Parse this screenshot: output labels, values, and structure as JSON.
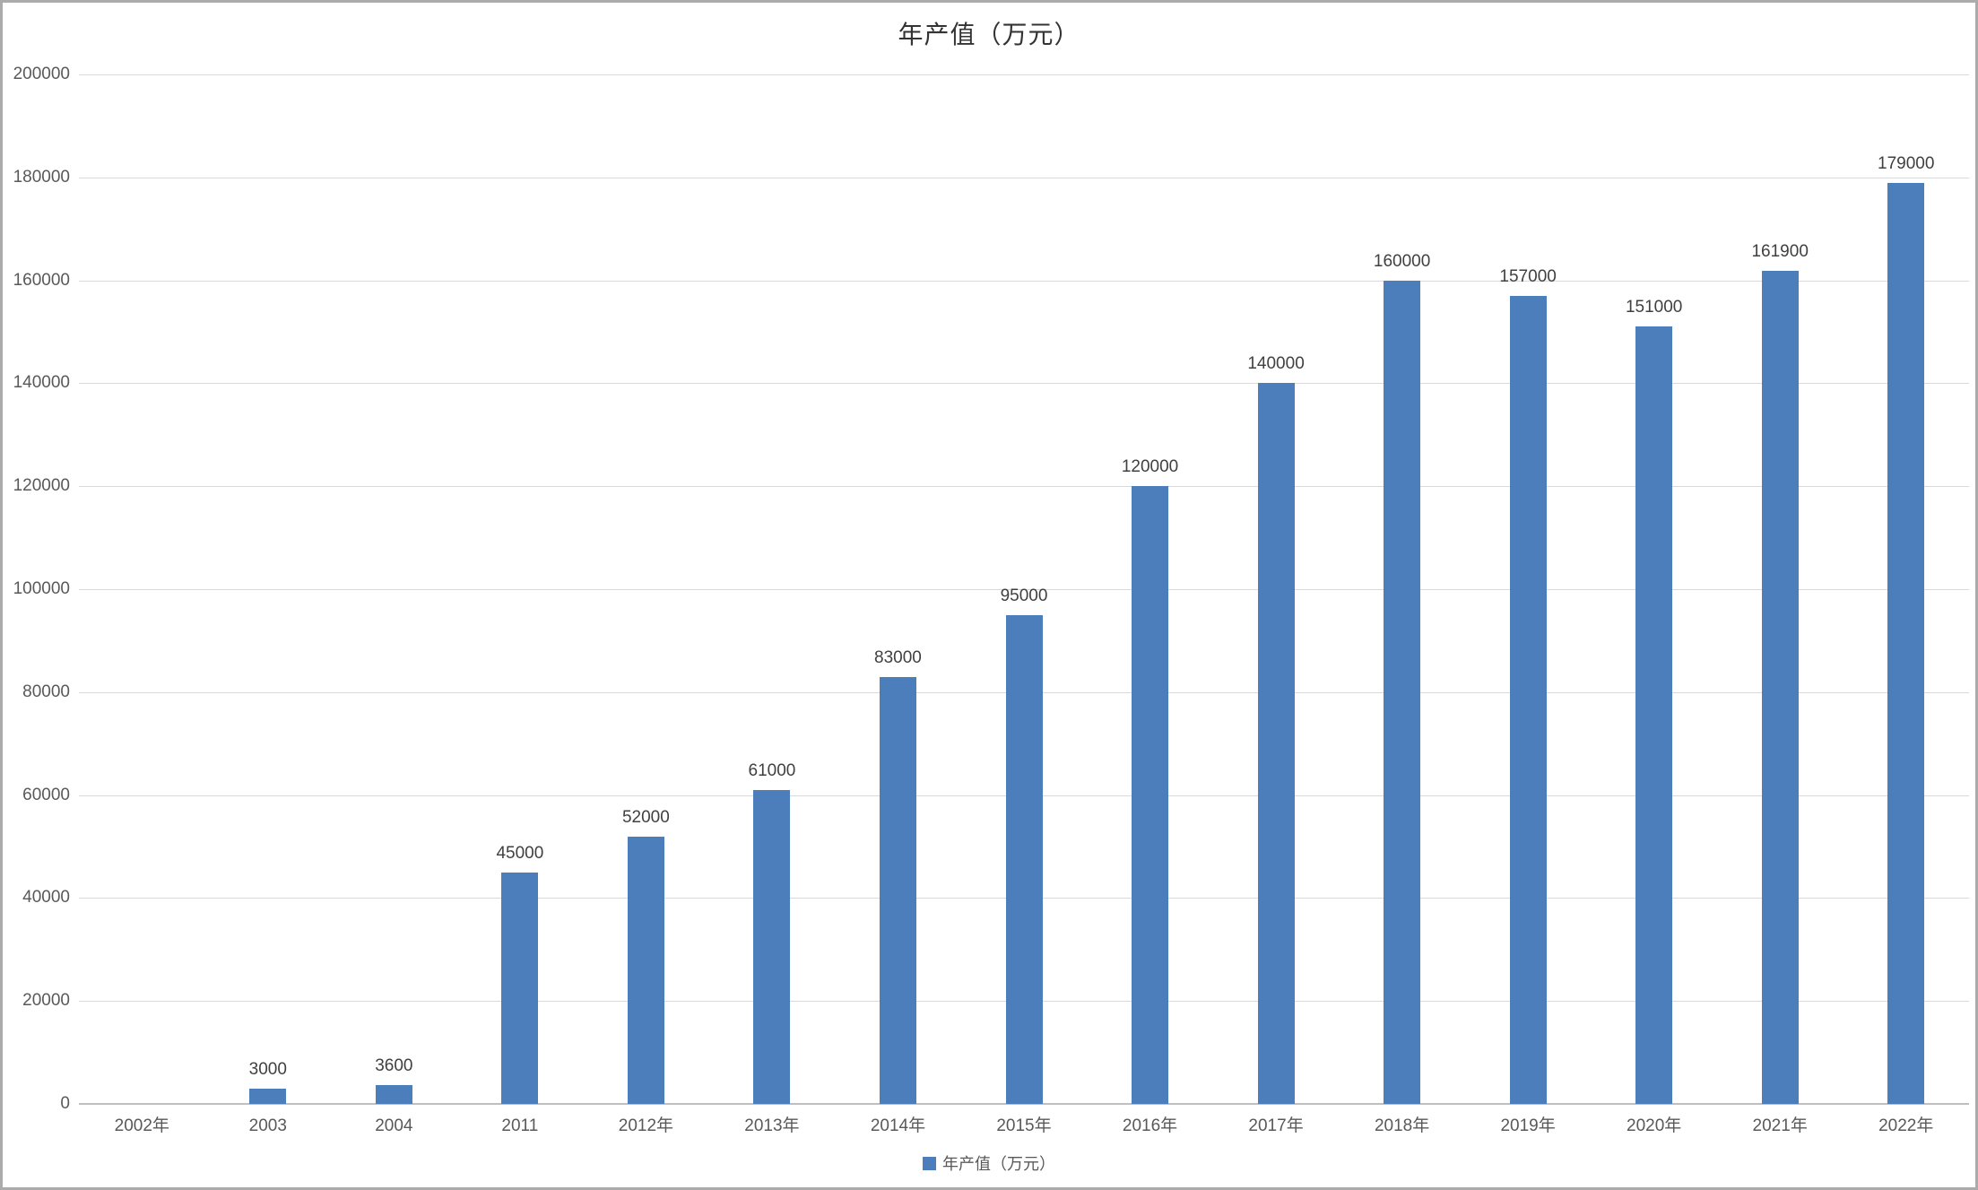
{
  "chart_data": {
    "type": "bar",
    "title": "年产值（万元）",
    "categories": [
      "2002年",
      "2003",
      "2004",
      "2011",
      "2012年",
      "2013年",
      "2014年",
      "2015年",
      "2016年",
      "2017年",
      "2018年",
      "2019年",
      "2020年",
      "2021年",
      "2022年"
    ],
    "values": [
      0,
      3000,
      3600,
      45000,
      52000,
      61000,
      83000,
      95000,
      120000,
      140000,
      160000,
      157000,
      151000,
      161900,
      179000
    ],
    "series": [
      {
        "name": "年产值（万元）",
        "values": [
          0,
          3000,
          3600,
          45000,
          52000,
          61000,
          83000,
          95000,
          120000,
          140000,
          160000,
          157000,
          151000,
          161900,
          179000
        ]
      }
    ],
    "xlabel": "",
    "ylabel": "",
    "ylim": [
      0,
      200000
    ],
    "y_ticks": [
      0,
      20000,
      40000,
      60000,
      80000,
      100000,
      120000,
      140000,
      160000,
      180000,
      200000
    ],
    "grid": true,
    "show_value_labels": true,
    "legend_position": "bottom",
    "legend_label": "年产值（万元）"
  },
  "colors": {
    "bar": "#4d7ebc",
    "gridline": "#d9d9d9",
    "axis_line": "#bfbfbf",
    "value_label": "#404040",
    "tick_label": "#595959",
    "title": "#333333",
    "page_border": "#ababab",
    "background": "#ffffff"
  }
}
